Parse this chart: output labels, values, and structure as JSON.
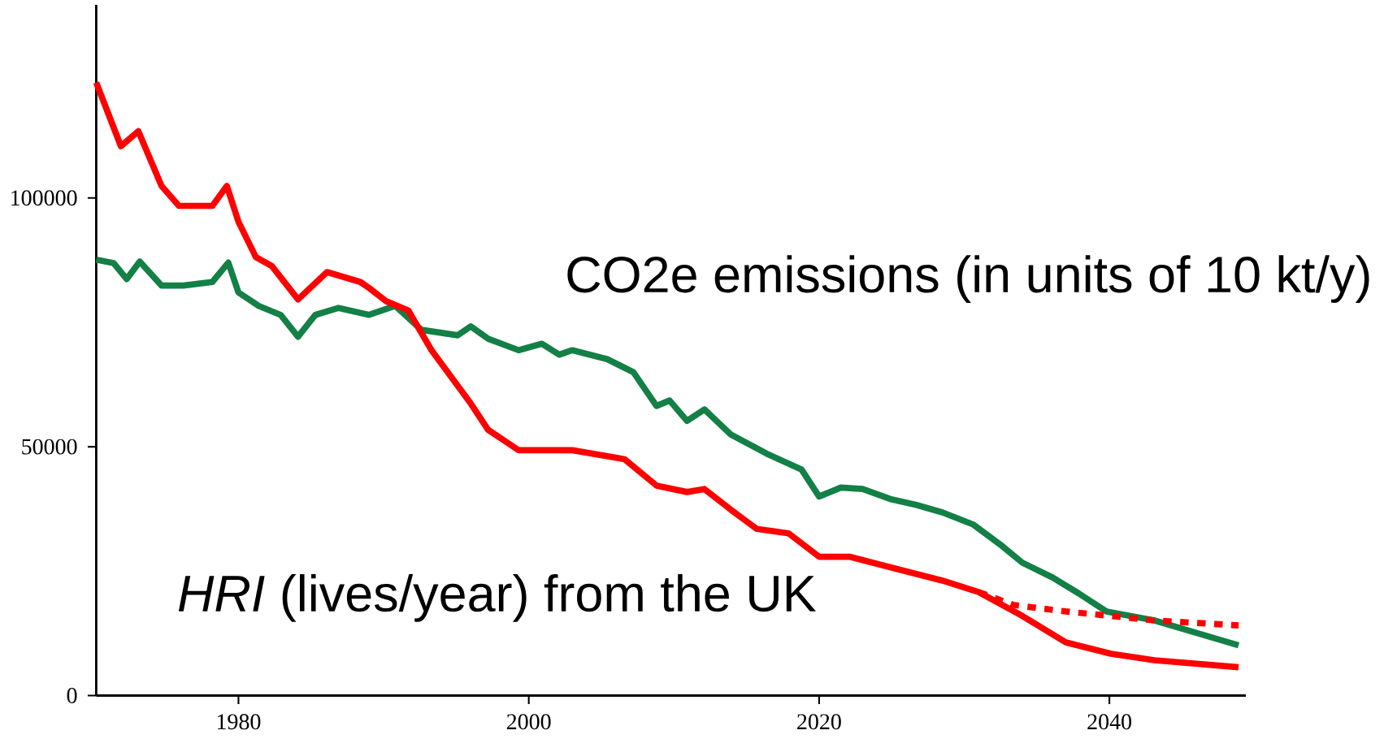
{
  "chart_data": {
    "type": "line",
    "xlim": [
      1970.2,
      2049.4
    ],
    "ylim": [
      0,
      138800
    ],
    "xticks": [
      1980,
      2000,
      2020,
      2040
    ],
    "yticks": [
      0,
      50000,
      100000
    ],
    "line_style": "solid",
    "grid": false,
    "legend": false,
    "marker": "none",
    "series": [
      {
        "name": "CO2e emissions (in units of 10 kt/y)",
        "color": "#138046",
        "x": [
          1970.2,
          1971.4,
          1972.3,
          1973.2,
          1974.7,
          1976.2,
          1978.2,
          1979.3,
          1980,
          1981.4,
          1982.9,
          1984.1,
          1985.3,
          1986.9,
          1989,
          1990.8,
          1992.6,
          1995.1,
          1996,
          1997.2,
          1999.3,
          2000.9,
          2002.1,
          2003,
          2005.4,
          2007.2,
          2008.8,
          2009.7,
          2010.9,
          2012.1,
          2013.9,
          2016.4,
          2018.8,
          2020,
          2021.5,
          2023,
          2024.9,
          2026.7,
          2028.5,
          2030.6,
          2032.5,
          2034,
          2036.1,
          2037.9,
          2039.8,
          2043.1,
          2046.1,
          2048.9
        ],
        "values": [
          87600,
          86900,
          83700,
          87200,
          82400,
          82400,
          83100,
          87000,
          81000,
          78300,
          76500,
          72100,
          76500,
          77900,
          76500,
          78300,
          73500,
          72400,
          74200,
          71700,
          69400,
          70700,
          68500,
          69400,
          67600,
          65000,
          58200,
          59300,
          55200,
          57500,
          52500,
          48600,
          45400,
          40000,
          41800,
          41500,
          39500,
          38300,
          36800,
          34400,
          30300,
          26700,
          23700,
          20500,
          16900,
          15100,
          12500,
          10100
        ]
      },
      {
        "name": "*HRI* (lives/year) from the UK",
        "color": "#ff0000",
        "x": [
          1970.2,
          1971.9,
          1973.1,
          1974.7,
          1975.9,
          1978.2,
          1979.2,
          1980,
          1981.2,
          1982.3,
          1984.1,
          1986.1,
          1988.4,
          1989,
          1990.2,
          1991.7,
          1993.3,
          1996,
          1997.2,
          1999.3,
          2003,
          2006.6,
          2008.8,
          2010.9,
          2012.1,
          2013.9,
          2015.7,
          2017.9,
          2020,
          2022.1,
          2024.9,
          2028.5,
          2031,
          2034,
          2037,
          2040.1,
          2043.1,
          2048.9
        ],
        "values": [
          123200,
          110400,
          113400,
          102400,
          98400,
          98400,
          102400,
          95200,
          88100,
          86300,
          79600,
          85100,
          83100,
          81900,
          79200,
          77400,
          69400,
          58700,
          53400,
          49300,
          49300,
          47500,
          42200,
          40900,
          41500,
          37400,
          33500,
          32600,
          27900,
          27900,
          25800,
          23100,
          20800,
          16000,
          10700,
          8400,
          7100,
          5700
        ]
      },
      {
        "color": "#ff0000",
        "line_style": "dashed",
        "x": [
          2031,
          2033.4,
          2037,
          2040.1,
          2043.1,
          2048.9
        ],
        "values": [
          20800,
          18200,
          16900,
          16000,
          15100,
          14100
        ]
      }
    ]
  }
}
